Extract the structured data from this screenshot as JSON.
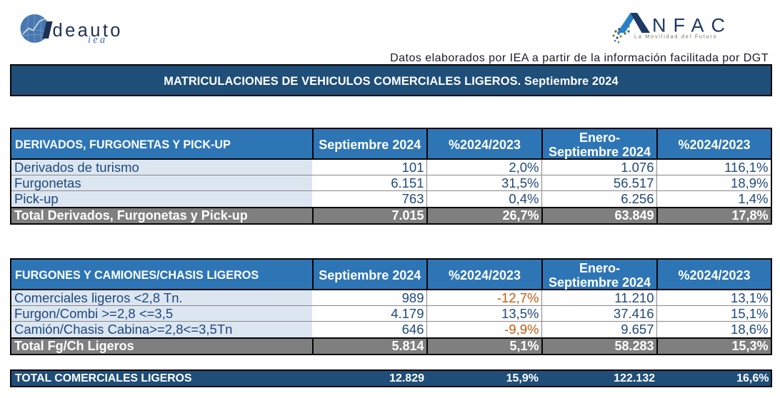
{
  "page": {
    "background": "#ffffff"
  },
  "logos": {
    "ideauto": {
      "alt": "Ideauto logo",
      "word": "deauto",
      "script_word": "iea",
      "globe_color": "#4878B0",
      "text_color": "#1F3055",
      "script_color": "#3C6FC0"
    },
    "anfac": {
      "alt": "ANFAC logo",
      "word": "NFAC",
      "tagline": "La Movilidad del Futuro",
      "dark_color": "#1F3864",
      "light_color": "#2980C4",
      "tagline_color": "#6b6b4f"
    }
  },
  "source_note": "Datos elaborados por IEA a partir de la información facilitada por DGT",
  "title": "MATRICULACIONES DE VEHICULOS COMERCIALES LIGEROS. Septiembre 2024",
  "colors": {
    "title_bar": "#1F4E79",
    "table_header": "#2E75B6",
    "label_fill": "#DCE6F1",
    "total_fill": "#7F7F7F",
    "body_text": "#1F497D",
    "negative_text": "#C55A11"
  },
  "tables": [
    {
      "header": "DERIVADOS, FURGONETAS Y PICK-UP",
      "columns": [
        "Septiembre 2024",
        "%2024/2023",
        [
          "Enero-",
          "Septiembre 2024"
        ],
        "%2024/2023"
      ],
      "rows": [
        {
          "label": "Derivados de turismo",
          "values": [
            "101",
            "2,0%",
            "1.076",
            "116,1%"
          ]
        },
        {
          "label": "Furgonetas",
          "values": [
            "6.151",
            "31,5%",
            "56.517",
            "18,9%"
          ]
        },
        {
          "label": "Pick-up",
          "values": [
            "763",
            "0,4%",
            "6.256",
            "1,4%"
          ]
        }
      ],
      "total": {
        "label": "Total Derivados, Furgonetas y Pick-up",
        "values": [
          "7.015",
          "26,7%",
          "63.849",
          "17,8%"
        ]
      }
    },
    {
      "header": "FURGONES Y CAMIONES/CHASIS LIGEROS",
      "columns": [
        "Septiembre 2024",
        "%2024/2023",
        [
          "Enero-",
          "Septiembre 2024"
        ],
        "%2024/2023"
      ],
      "rows": [
        {
          "label": "Comerciales ligeros <2,8 Tn.",
          "values": [
            "989",
            "-12,7%",
            "11.210",
            "13,1%"
          ]
        },
        {
          "label": "Furgon/Combi >=2,8 <=3,5",
          "values": [
            "4.179",
            "13,5%",
            "37.416",
            "15,1%"
          ]
        },
        {
          "label": "Camión/Chasis Cabina>=2,8<=3,5Tn",
          "values": [
            "646",
            "-9,9%",
            "9.657",
            "18,6%"
          ]
        }
      ],
      "total": {
        "label": "Total Fg/Ch Ligeros",
        "values": [
          "5.814",
          "5,1%",
          "58.283",
          "15,3%"
        ]
      }
    }
  ],
  "grand_total": {
    "label": "TOTAL COMERCIALES LIGEROS",
    "values": [
      "12.829",
      "15,9%",
      "122.132",
      "16,6%"
    ]
  }
}
